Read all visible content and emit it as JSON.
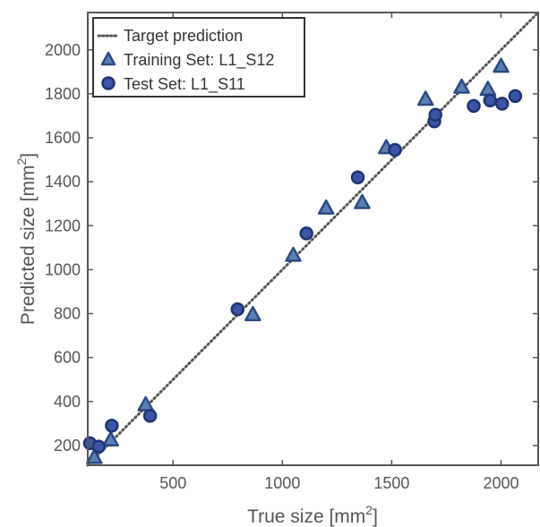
{
  "chart_data": {
    "type": "scatter",
    "xlabel_main": "True size [mm",
    "xlabel_sup": "2",
    "xlabel_end": "]",
    "ylabel_main": "Predicted size [mm",
    "ylabel_sup": "2",
    "ylabel_end": "]",
    "xlim": [
      110,
      2170
    ],
    "ylim": [
      110,
      2170
    ],
    "xticks": [
      500,
      1000,
      1500,
      2000
    ],
    "yticks": [
      200,
      400,
      600,
      800,
      1000,
      1200,
      1400,
      1600,
      1800,
      2000
    ],
    "grid": false,
    "legend_position": "top-left",
    "target_line": {
      "name": "Target prediction",
      "from": [
        110,
        110
      ],
      "to": [
        2170,
        2170
      ],
      "style": "dotted",
      "color": "#555555"
    },
    "series": [
      {
        "name": "Training Set: L1_S12",
        "marker": "triangle",
        "fill": "#5a7fb5",
        "stroke": "#2b4a82",
        "points": [
          [
            140,
            145
          ],
          [
            215,
            225
          ],
          [
            375,
            385
          ],
          [
            865,
            795
          ],
          [
            1050,
            1065
          ],
          [
            1200,
            1280
          ],
          [
            1365,
            1305
          ],
          [
            1475,
            1555
          ],
          [
            1655,
            1775
          ],
          [
            1820,
            1830
          ],
          [
            1940,
            1820
          ],
          [
            2000,
            1925
          ]
        ]
      },
      {
        "name": "Test Set: L1_S11",
        "marker": "circle",
        "fill": "#3a55a5",
        "stroke": "#1f3470",
        "points": [
          [
            120,
            210
          ],
          [
            160,
            195
          ],
          [
            220,
            290
          ],
          [
            395,
            335
          ],
          [
            795,
            820
          ],
          [
            1110,
            1165
          ],
          [
            1345,
            1420
          ],
          [
            1515,
            1545
          ],
          [
            1695,
            1675
          ],
          [
            1700,
            1705
          ],
          [
            1875,
            1745
          ],
          [
            1950,
            1770
          ],
          [
            2005,
            1755
          ],
          [
            2065,
            1790
          ]
        ]
      }
    ]
  }
}
